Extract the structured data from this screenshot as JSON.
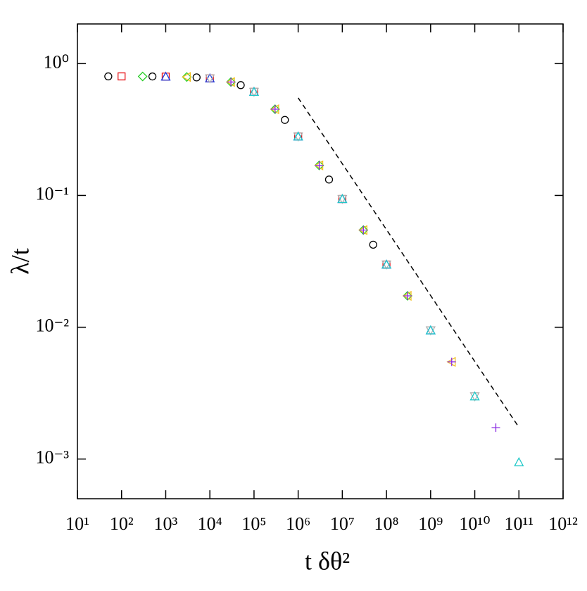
{
  "chart_data": {
    "type": "scatter",
    "x_label": "t δθ²",
    "y_label": "λ/t",
    "log_x": true,
    "log_y": true,
    "xlim": [
      10,
      1000000000000
    ],
    "ylim": [
      0.0005,
      2
    ],
    "xticks": [
      {
        "value": 10,
        "label": "10¹"
      },
      {
        "value": 100,
        "label": "10²"
      },
      {
        "value": 1000,
        "label": "10³"
      },
      {
        "value": 10000,
        "label": "10⁴"
      },
      {
        "value": 100000,
        "label": "10⁵"
      },
      {
        "value": 1000000,
        "label": "10⁶"
      },
      {
        "value": 10000000,
        "label": "10⁷"
      },
      {
        "value": 100000000,
        "label": "10⁸"
      },
      {
        "value": 1000000000,
        "label": "10⁹"
      },
      {
        "value": 10000000000,
        "label": "10¹⁰"
      },
      {
        "value": 100000000000,
        "label": "10¹¹"
      },
      {
        "value": 1000000000000,
        "label": "10¹²"
      }
    ],
    "yticks": [
      {
        "value": 0.001,
        "label": "10⁻³"
      },
      {
        "value": 0.01,
        "label": "10⁻²"
      },
      {
        "value": 0.1,
        "label": "10⁻¹"
      },
      {
        "value": 1,
        "label": "10⁰"
      }
    ],
    "series": [
      {
        "color": "#000000",
        "marker": "circle",
        "x": [
          50,
          500,
          5000,
          50000,
          500000,
          5000000,
          50000000
        ],
        "values": [
          0.8,
          0.799,
          0.786,
          0.687,
          0.374,
          0.132,
          0.0423
        ]
      },
      {
        "color": "#e8161b",
        "marker": "square",
        "x": [
          100,
          1000,
          10000,
          100000,
          1000000,
          10000000,
          100000000
        ],
        "values": [
          0.8,
          0.797,
          0.773,
          0.611,
          0.28,
          0.094,
          0.0299
        ]
      },
      {
        "color": "#22cc22",
        "marker": "diamond",
        "x": [
          300,
          3000,
          30000,
          300000,
          3000000,
          30000000,
          300000000
        ],
        "values": [
          0.799,
          0.792,
          0.725,
          0.451,
          0.169,
          0.0546,
          0.0173
        ]
      },
      {
        "color": "#1a3de0",
        "marker": "triangle-up",
        "x": [
          1000,
          10000,
          100000,
          1000000,
          10000000,
          100000000,
          1000000000
        ],
        "values": [
          0.797,
          0.773,
          0.611,
          0.28,
          0.094,
          0.0299,
          0.00947
        ]
      },
      {
        "color": "#f0c020",
        "marker": "triangle-left",
        "x": [
          3000,
          30000,
          300000,
          3000000,
          30000000,
          300000000,
          3000000000
        ],
        "values": [
          0.792,
          0.725,
          0.451,
          0.169,
          0.0546,
          0.0173,
          0.00546
        ]
      },
      {
        "color": "#b0b0b0",
        "marker": "triangle-down",
        "x": [
          10000,
          100000,
          1000000,
          10000000,
          100000000,
          1000000000,
          10000000000
        ],
        "values": [
          0.773,
          0.611,
          0.28,
          0.094,
          0.0299,
          0.00947,
          0.00299
        ]
      },
      {
        "color": "#8a2be2",
        "marker": "plus",
        "x": [
          30000,
          300000,
          3000000,
          30000000,
          300000000,
          3000000000,
          30000000000
        ],
        "values": [
          0.725,
          0.451,
          0.169,
          0.0546,
          0.0173,
          0.00546,
          0.00173
        ]
      },
      {
        "color": "#20c8c8",
        "marker": "triangle-up",
        "x": [
          100000,
          1000000,
          10000000,
          100000000,
          1000000000,
          10000000000,
          100000000000
        ],
        "values": [
          0.611,
          0.28,
          0.094,
          0.0299,
          0.00947,
          0.00299,
          0.000946
        ]
      }
    ],
    "reference_line": {
      "x": [
        1000000,
        100000000000
      ],
      "values": [
        0.55,
        0.00174
      ],
      "color": "#000000",
      "dashed": true
    }
  }
}
